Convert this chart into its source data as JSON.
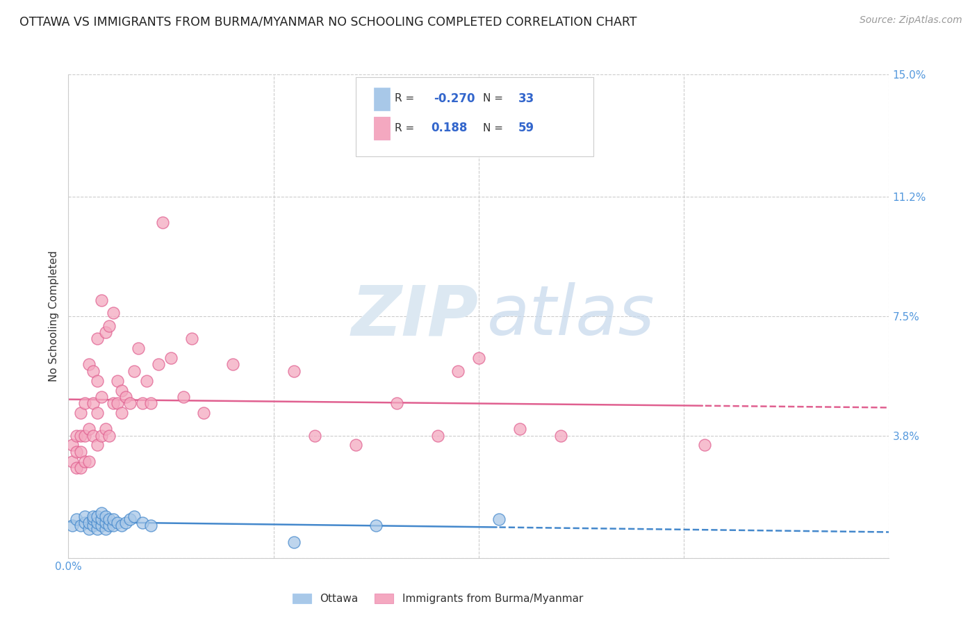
{
  "title": "OTTAWA VS IMMIGRANTS FROM BURMA/MYANMAR NO SCHOOLING COMPLETED CORRELATION CHART",
  "source": "Source: ZipAtlas.com",
  "ylabel": "No Schooling Completed",
  "xlim": [
    0.0,
    0.2
  ],
  "ylim": [
    0.0,
    0.15
  ],
  "ytick_positions": [
    0.0,
    0.038,
    0.075,
    0.112,
    0.15
  ],
  "ytick_labels": [
    "",
    "3.8%",
    "7.5%",
    "11.2%",
    "15.0%"
  ],
  "ottawa_color": "#a8c8e8",
  "burma_color": "#f4a8c0",
  "ottawa_line_color": "#4488cc",
  "burma_line_color": "#e06090",
  "legend_r_ottawa": "-0.270",
  "legend_n_ottawa": "33",
  "legend_r_burma": "0.188",
  "legend_n_burma": "59",
  "background_color": "#ffffff",
  "grid_color": "#cccccc",
  "tick_color": "#5599dd",
  "ottawa_x": [
    0.001,
    0.002,
    0.003,
    0.004,
    0.004,
    0.005,
    0.005,
    0.006,
    0.006,
    0.006,
    0.007,
    0.007,
    0.007,
    0.008,
    0.008,
    0.008,
    0.009,
    0.009,
    0.009,
    0.01,
    0.01,
    0.011,
    0.011,
    0.012,
    0.013,
    0.014,
    0.015,
    0.016,
    0.018,
    0.02,
    0.055,
    0.075,
    0.105
  ],
  "ottawa_y": [
    0.01,
    0.012,
    0.01,
    0.011,
    0.013,
    0.009,
    0.011,
    0.01,
    0.012,
    0.013,
    0.009,
    0.011,
    0.013,
    0.01,
    0.012,
    0.014,
    0.009,
    0.011,
    0.013,
    0.01,
    0.012,
    0.01,
    0.012,
    0.011,
    0.01,
    0.011,
    0.012,
    0.013,
    0.011,
    0.01,
    0.005,
    0.01,
    0.012
  ],
  "burma_x": [
    0.001,
    0.001,
    0.002,
    0.002,
    0.002,
    0.003,
    0.003,
    0.003,
    0.003,
    0.004,
    0.004,
    0.004,
    0.005,
    0.005,
    0.005,
    0.006,
    0.006,
    0.006,
    0.007,
    0.007,
    0.007,
    0.007,
    0.008,
    0.008,
    0.008,
    0.009,
    0.009,
    0.01,
    0.01,
    0.011,
    0.011,
    0.012,
    0.012,
    0.013,
    0.013,
    0.014,
    0.015,
    0.016,
    0.017,
    0.018,
    0.019,
    0.02,
    0.022,
    0.023,
    0.025,
    0.028,
    0.03,
    0.033,
    0.04,
    0.055,
    0.06,
    0.07,
    0.08,
    0.09,
    0.095,
    0.1,
    0.11,
    0.12,
    0.155
  ],
  "burma_y": [
    0.03,
    0.035,
    0.028,
    0.033,
    0.038,
    0.028,
    0.033,
    0.038,
    0.045,
    0.03,
    0.038,
    0.048,
    0.03,
    0.04,
    0.06,
    0.038,
    0.048,
    0.058,
    0.035,
    0.045,
    0.055,
    0.068,
    0.038,
    0.05,
    0.08,
    0.04,
    0.07,
    0.038,
    0.072,
    0.048,
    0.076,
    0.048,
    0.055,
    0.045,
    0.052,
    0.05,
    0.048,
    0.058,
    0.065,
    0.048,
    0.055,
    0.048,
    0.06,
    0.104,
    0.062,
    0.05,
    0.068,
    0.045,
    0.06,
    0.058,
    0.038,
    0.035,
    0.048,
    0.038,
    0.058,
    0.062,
    0.04,
    0.038,
    0.035
  ]
}
